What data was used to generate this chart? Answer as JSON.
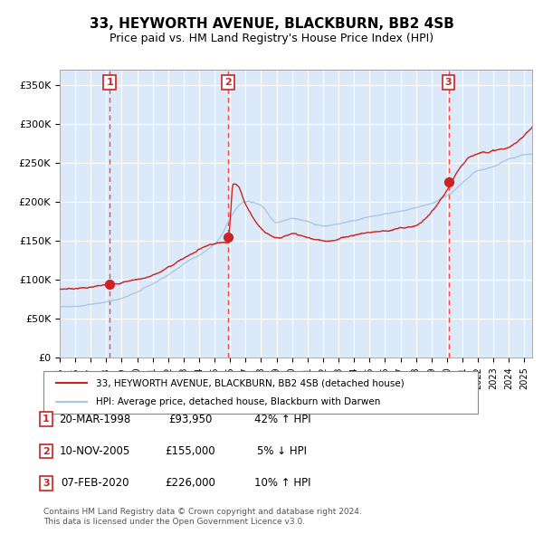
{
  "title": "33, HEYWORTH AVENUE, BLACKBURN, BB2 4SB",
  "subtitle": "Price paid vs. HM Land Registry's House Price Index (HPI)",
  "xlabel": "",
  "ylabel": "",
  "ylim": [
    0,
    370000
  ],
  "yticks": [
    0,
    50000,
    100000,
    150000,
    200000,
    250000,
    300000,
    350000
  ],
  "ytick_labels": [
    "£0",
    "£50K",
    "£100K",
    "£150K",
    "£200K",
    "£250K",
    "£300K",
    "£350K"
  ],
  "bg_color": "#dce9f8",
  "plot_bg": "#dce9f8",
  "grid_color": "#ffffff",
  "hpi_color": "#a8c8e8",
  "price_color": "#cc2222",
  "sale_marker_color": "#cc2222",
  "vline_color": "#ff4444",
  "number_box_color": "#cc2222",
  "sale1_date": 1998.22,
  "sale1_price": 93950,
  "sale2_date": 2005.86,
  "sale2_price": 155000,
  "sale3_date": 2020.1,
  "sale3_price": 226000,
  "legend_price_label": "33, HEYWORTH AVENUE, BLACKBURN, BB2 4SB (detached house)",
  "legend_hpi_label": "HPI: Average price, detached house, Blackburn with Darwen",
  "table_data": [
    [
      "1",
      "20-MAR-1998",
      "£93,950",
      "42% ↑ HPI"
    ],
    [
      "2",
      "10-NOV-2005",
      "£155,000",
      "5% ↓ HPI"
    ],
    [
      "3",
      "07-FEB-2020",
      "£226,000",
      "10% ↑ HPI"
    ]
  ],
  "footnote": "Contains HM Land Registry data © Crown copyright and database right 2024.\nThis data is licensed under the Open Government Licence v3.0.",
  "xstart": 1995,
  "xend": 2025.5
}
